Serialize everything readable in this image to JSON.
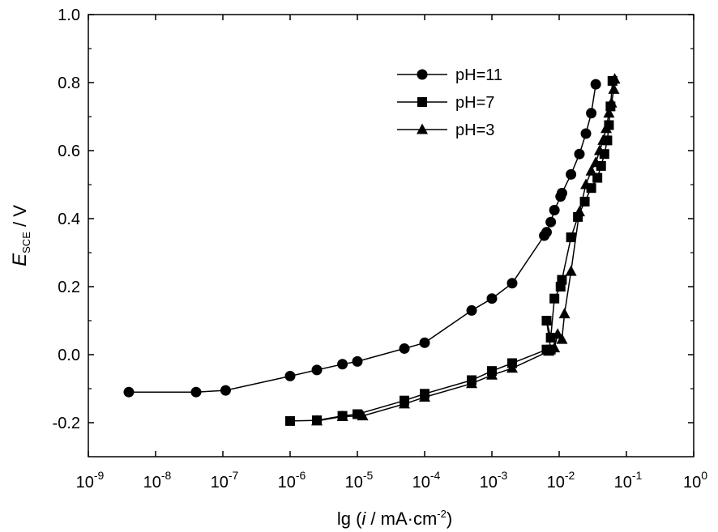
{
  "chart_data": {
    "type": "line",
    "x_scale": "log",
    "xlim": [
      1e-09,
      1
    ],
    "ylim": [
      -0.3,
      1.0
    ],
    "x_tick_exponents": [
      "-9",
      "-8",
      "-7",
      "-6",
      "-5",
      "-4",
      "-3",
      "-2",
      "-1",
      "0"
    ],
    "x_tick_base": "10",
    "y_ticks": [
      "-0.2",
      "0.0",
      "0.2",
      "0.4",
      "0.6",
      "0.8",
      "1.0"
    ],
    "y_tick_values": [
      -0.2,
      0.0,
      0.2,
      0.4,
      0.6,
      0.8,
      1.0
    ],
    "xlabel": {
      "prefix": "lg (",
      "var": "i",
      "mid": " / mA·cm",
      "sup": "-2",
      "suffix": ")"
    },
    "ylabel": {
      "main": "E",
      "sub": "SCE",
      "suffix": " / V"
    },
    "grid": false,
    "legend_position": "top-right",
    "series": [
      {
        "name": "pH=11",
        "marker": "circle",
        "points": [
          [
            4e-09,
            -0.11
          ],
          [
            4e-08,
            -0.11
          ],
          [
            1.1e-07,
            -0.105
          ],
          [
            1e-06,
            -0.063
          ],
          [
            2.5e-06,
            -0.045
          ],
          [
            6e-06,
            -0.028
          ],
          [
            1e-05,
            -0.02
          ],
          [
            5e-05,
            0.018
          ],
          [
            0.0001,
            0.035
          ],
          [
            0.0005,
            0.13
          ],
          [
            0.001,
            0.165
          ],
          [
            0.002,
            0.21
          ],
          [
            0.006,
            0.35
          ],
          [
            0.0065,
            0.36
          ],
          [
            0.0075,
            0.39
          ],
          [
            0.0085,
            0.425
          ],
          [
            0.0105,
            0.465
          ],
          [
            0.011,
            0.475
          ],
          [
            0.015,
            0.53
          ],
          [
            0.02,
            0.59
          ],
          [
            0.025,
            0.65
          ],
          [
            0.03,
            0.71
          ],
          [
            0.035,
            0.795
          ]
        ]
      },
      {
        "name": "pH=7",
        "marker": "square",
        "points": [
          [
            1e-06,
            -0.195
          ],
          [
            2.5e-06,
            -0.193
          ],
          [
            6e-06,
            -0.18
          ],
          [
            1e-05,
            -0.175
          ],
          [
            5e-05,
            -0.135
          ],
          [
            0.0001,
            -0.115
          ],
          [
            0.0005,
            -0.075
          ],
          [
            0.001,
            -0.048
          ],
          [
            0.002,
            -0.025
          ],
          [
            0.0065,
            0.015
          ],
          [
            0.0075,
            0.015
          ],
          [
            0.0065,
            0.1
          ],
          [
            0.0075,
            0.05
          ],
          [
            0.0085,
            0.165
          ],
          [
            0.0105,
            0.2
          ],
          [
            0.011,
            0.22
          ],
          [
            0.015,
            0.345
          ],
          [
            0.019,
            0.405
          ],
          [
            0.024,
            0.45
          ],
          [
            0.03,
            0.49
          ],
          [
            0.037,
            0.52
          ],
          [
            0.042,
            0.555
          ],
          [
            0.047,
            0.59
          ],
          [
            0.052,
            0.63
          ],
          [
            0.055,
            0.675
          ],
          [
            0.058,
            0.73
          ],
          [
            0.062,
            0.805
          ]
        ]
      },
      {
        "name": "pH=3",
        "marker": "triangle",
        "points": [
          [
            2.5e-06,
            -0.195
          ],
          [
            6e-06,
            -0.182
          ],
          [
            1.2e-05,
            -0.18
          ],
          [
            5e-05,
            -0.145
          ],
          [
            0.0001,
            -0.125
          ],
          [
            0.0005,
            -0.085
          ],
          [
            0.001,
            -0.06
          ],
          [
            0.002,
            -0.04
          ],
          [
            0.007,
            0.01
          ],
          [
            0.0085,
            0.02
          ],
          [
            0.0095,
            0.06
          ],
          [
            0.011,
            0.045
          ],
          [
            0.012,
            0.12
          ],
          [
            0.015,
            0.245
          ],
          [
            0.02,
            0.42
          ],
          [
            0.025,
            0.5
          ],
          [
            0.03,
            0.54
          ],
          [
            0.035,
            0.565
          ],
          [
            0.04,
            0.6
          ],
          [
            0.045,
            0.63
          ],
          [
            0.05,
            0.665
          ],
          [
            0.055,
            0.71
          ],
          [
            0.06,
            0.74
          ],
          [
            0.065,
            0.78
          ],
          [
            0.067,
            0.81
          ]
        ]
      }
    ]
  }
}
